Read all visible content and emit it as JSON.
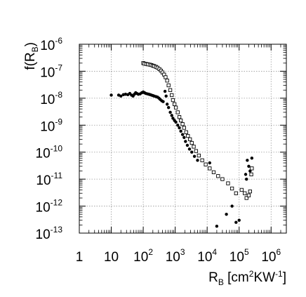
{
  "chart_data": {
    "type": "scatter",
    "title": "",
    "xlabel": {
      "main": "R",
      "sub": "B",
      "pre": " [cm",
      "sup1": "2",
      "mid": "KW",
      "sup2": "-1",
      "post": "]"
    },
    "ylabel": {
      "main": "f(R",
      "sub": "B",
      "post": ")"
    },
    "x_scale": "log",
    "y_scale": "log",
    "xlim": [
      1,
      3000000
    ],
    "ylim": [
      1e-13,
      1e-06
    ],
    "grid": true,
    "x_ticks": [
      {
        "value": 1,
        "base": "1",
        "exp": ""
      },
      {
        "value": 10,
        "base": "10",
        "exp": ""
      },
      {
        "value": 100,
        "base": "10",
        "exp": "2"
      },
      {
        "value": 1000,
        "base": "10",
        "exp": "3"
      },
      {
        "value": 10000,
        "base": "10",
        "exp": "4"
      },
      {
        "value": 100000,
        "base": "10",
        "exp": "5"
      },
      {
        "value": 1000000,
        "base": "10",
        "exp": "6"
      }
    ],
    "y_ticks": [
      {
        "value": 1e-13,
        "base": "10",
        "exp": "-13"
      },
      {
        "value": 1e-12,
        "base": "10",
        "exp": "-12"
      },
      {
        "value": 1e-11,
        "base": "10",
        "exp": "-11"
      },
      {
        "value": 1e-10,
        "base": "10",
        "exp": "-10"
      },
      {
        "value": 1e-09,
        "base": "10",
        "exp": "-9"
      },
      {
        "value": 1e-08,
        "base": "10",
        "exp": "-8"
      },
      {
        "value": 1e-07,
        "base": "10",
        "exp": "-7"
      },
      {
        "value": 1e-06,
        "base": "10",
        "exp": "-6"
      }
    ],
    "series": [
      {
        "marker": "filled-circle",
        "color": "#000000",
        "points": [
          [
            10,
            1.3e-08
          ],
          [
            17,
            1.3e-08
          ],
          [
            20,
            1.2e-08
          ],
          [
            24,
            1.35e-08
          ],
          [
            28,
            1.4e-08
          ],
          [
            33,
            1.35e-08
          ],
          [
            38,
            1.5e-08
          ],
          [
            43,
            1.3e-08
          ],
          [
            48,
            1.2e-08
          ],
          [
            53,
            1.4e-08
          ],
          [
            58,
            1.6e-08
          ],
          [
            63,
            1.5e-08
          ],
          [
            70,
            1.4e-08
          ],
          [
            80,
            1.45e-08
          ],
          [
            90,
            1.6e-08
          ],
          [
            100,
            1.7e-08
          ],
          [
            110,
            1.6e-08
          ],
          [
            120,
            1.5e-08
          ],
          [
            135,
            1.45e-08
          ],
          [
            150,
            1.4e-08
          ],
          [
            165,
            1.35e-08
          ],
          [
            180,
            1.3e-08
          ],
          [
            200,
            1.25e-08
          ],
          [
            220,
            1.2e-08
          ],
          [
            250,
            1.15e-08
          ],
          [
            280,
            1.1e-08
          ],
          [
            310,
            1e-08
          ],
          [
            340,
            9e-09
          ],
          [
            380,
            8e-09
          ],
          [
            420,
            7.5e-09
          ],
          [
            480,
            1.8e-08
          ],
          [
            520,
            1.2e-08
          ],
          [
            560,
            6e-09
          ],
          [
            620,
            4.5e-09
          ],
          [
            700,
            3e-09
          ],
          [
            780,
            2.3e-09
          ],
          [
            850,
            1.8e-09
          ],
          [
            950,
            1.5e-09
          ],
          [
            1050,
            1.3e-09
          ],
          [
            1200,
            1e-09
          ],
          [
            1350,
            8e-10
          ],
          [
            1500,
            6e-10
          ],
          [
            1700,
            4.5e-10
          ],
          [
            1900,
            3.5e-10
          ],
          [
            2100,
            2.5e-10
          ],
          [
            2400,
            1.8e-10
          ],
          [
            2800,
            1.3e-10
          ],
          [
            3300,
            1e-10
          ],
          [
            4000,
            7e-11
          ],
          [
            5000,
            5e-11
          ],
          [
            12000,
            4e-11
          ],
          [
            20000,
            1.8e-13
          ],
          [
            40000,
            5e-13
          ],
          [
            60000,
            1e-12
          ],
          [
            80000,
            2.5e-13
          ],
          [
            100000,
            3e-13
          ],
          [
            180000,
            5e-11
          ],
          [
            200000,
            3e-11
          ],
          [
            220000,
            2e-11
          ],
          [
            250000,
            6e-11
          ],
          [
            160000,
            1.5e-11
          ],
          [
            170000,
            1e-11
          ]
        ]
      },
      {
        "marker": "open-square",
        "color": "#000000",
        "points": [
          [
            100,
            2e-07
          ],
          [
            110,
            1.9e-07
          ],
          [
            125,
            1.85e-07
          ],
          [
            140,
            1.8e-07
          ],
          [
            160,
            1.75e-07
          ],
          [
            180,
            1.7e-07
          ],
          [
            200,
            1.6e-07
          ],
          [
            220,
            1.55e-07
          ],
          [
            250,
            1.45e-07
          ],
          [
            280,
            1.35e-07
          ],
          [
            320,
            1.2e-07
          ],
          [
            360,
            1.05e-07
          ],
          [
            400,
            9e-08
          ],
          [
            450,
            7.5e-08
          ],
          [
            500,
            6e-08
          ],
          [
            560,
            4.5e-08
          ],
          [
            620,
            3e-08
          ],
          [
            700,
            2e-08
          ],
          [
            780,
            1.3e-08
          ],
          [
            850,
            8.5e-09
          ],
          [
            950,
            6e-09
          ],
          [
            1050,
            4.5e-09
          ],
          [
            1200,
            3e-09
          ],
          [
            1350,
            2e-09
          ],
          [
            1500,
            1.5e-09
          ],
          [
            1700,
            1.1e-09
          ],
          [
            1900,
            8e-10
          ],
          [
            2200,
            5.5e-10
          ],
          [
            2500,
            4e-10
          ],
          [
            2900,
            3e-10
          ],
          [
            3300,
            2.2e-10
          ],
          [
            3800,
            1.6e-10
          ],
          [
            4500,
            1.1e-10
          ],
          [
            5500,
            7.5e-11
          ],
          [
            7000,
            5e-11
          ],
          [
            9000,
            3.5e-11
          ],
          [
            12000,
            2.5e-11
          ],
          [
            16000,
            1.8e-11
          ],
          [
            22000,
            1.3e-11
          ],
          [
            30000,
            1e-11
          ],
          [
            45000,
            7e-12
          ],
          [
            60000,
            4.5e-12
          ],
          [
            80000,
            3e-12
          ],
          [
            120000,
            4e-12
          ],
          [
            150000,
            3e-12
          ],
          [
            170000,
            2e-12
          ],
          [
            200000,
            2.5e-12
          ],
          [
            220000,
            3.5e-12
          ],
          [
            240000,
            1.5e-11
          ],
          [
            250000,
            2.5e-11
          ]
        ]
      }
    ]
  }
}
